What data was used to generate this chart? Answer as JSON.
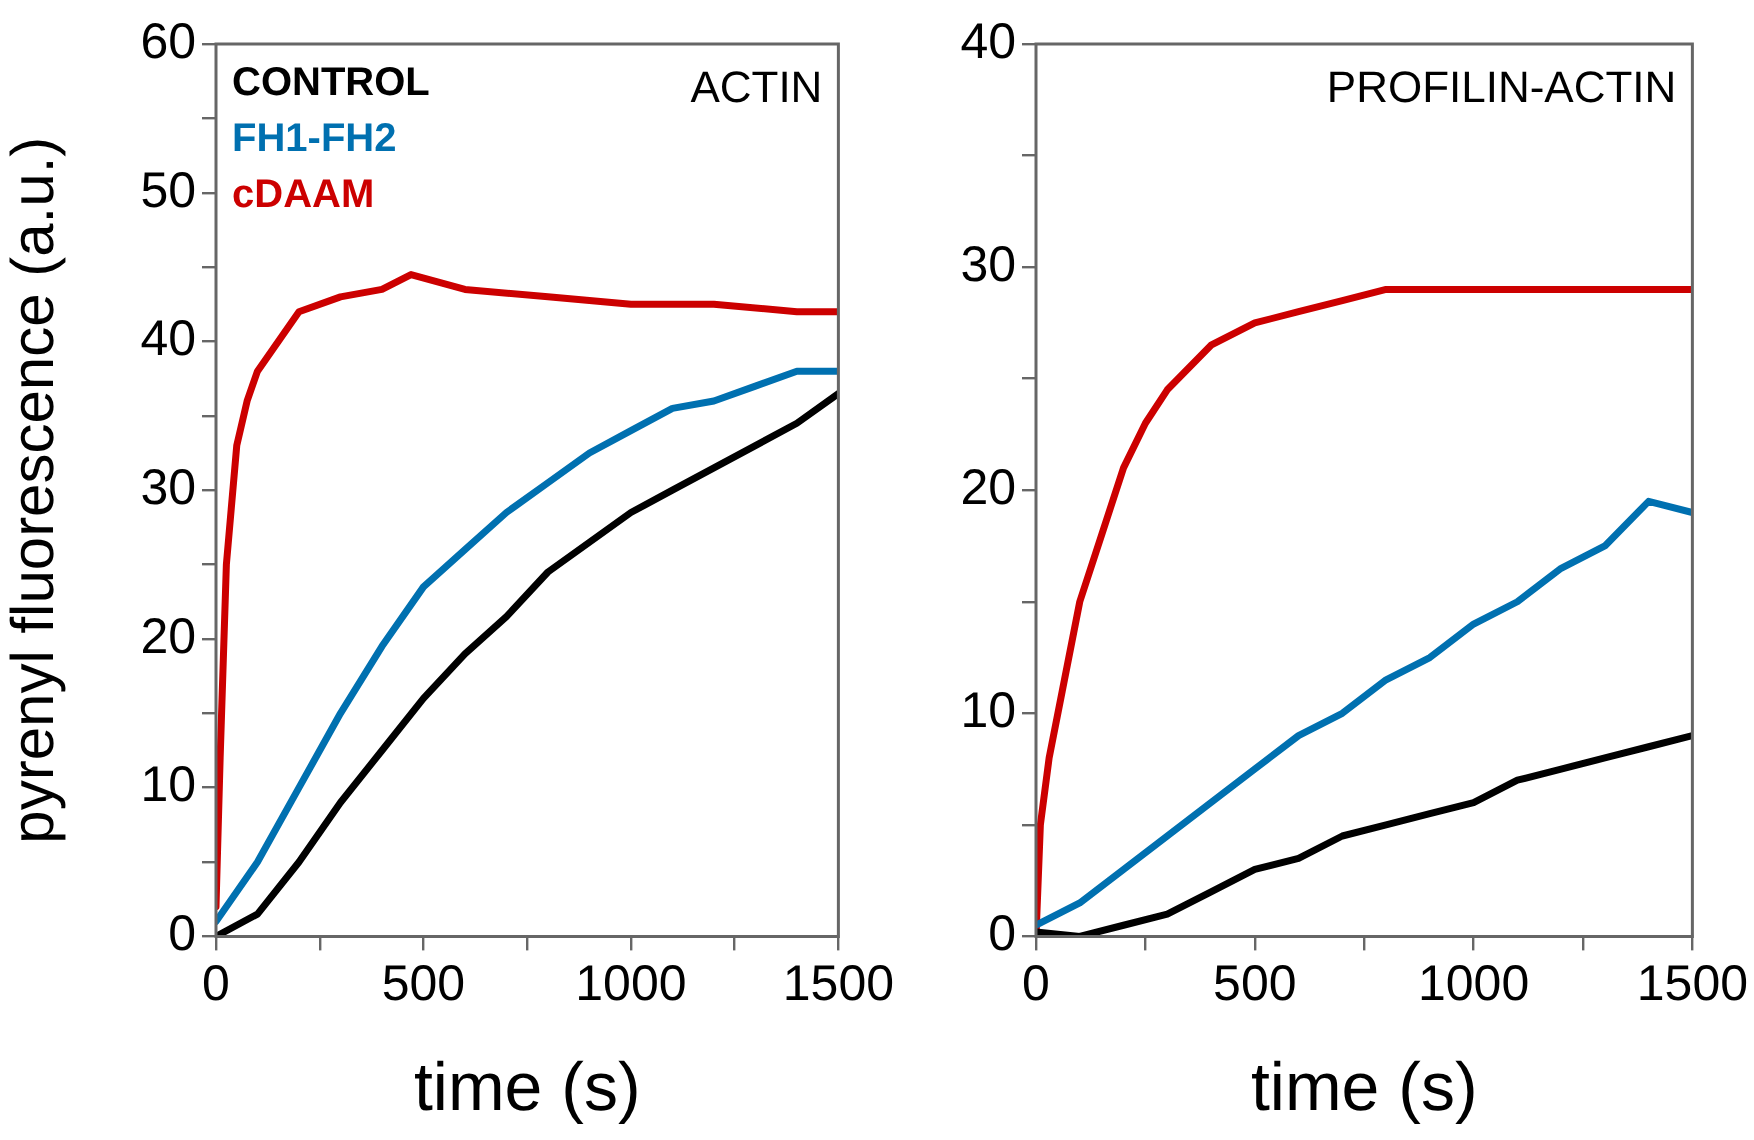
{
  "chart_data": [
    {
      "type": "line",
      "xlabel": "time (s)",
      "ylabel": "pyrenyl fluorescence (a.u.)",
      "annotations": [
        "ACTIN"
      ],
      "legend": "top left",
      "grid": false,
      "marker": "none",
      "line_style": "solid",
      "xlim": [
        0,
        1500
      ],
      "xticks": [
        0,
        {
          "value": 250,
          "label": null
        },
        500,
        {
          "value": 750,
          "label": null
        },
        1000,
        {
          "value": 1250,
          "label": null
        },
        1500
      ],
      "ylim": [
        0,
        60
      ],
      "yticks": [
        0,
        {
          "value": 5,
          "label": null
        },
        10,
        {
          "value": 15,
          "label": null
        },
        20,
        {
          "value": 25,
          "label": null
        },
        30,
        {
          "value": 35,
          "label": null
        },
        40,
        {
          "value": 45,
          "label": null
        },
        50,
        {
          "value": 55,
          "label": null
        },
        60
      ],
      "series": [
        {
          "name": "CONTROL",
          "color": "#000000",
          "x": [
            0,
            100,
            200,
            300,
            400,
            500,
            600,
            700,
            800,
            900,
            1000,
            1100,
            1200,
            1300,
            1400,
            1500
          ],
          "values": [
            0,
            1.5,
            5,
            9,
            12.5,
            16,
            19,
            21.5,
            24.5,
            26.5,
            28.5,
            30,
            31.5,
            33,
            34.5,
            36.5
          ]
        },
        {
          "name": "FH1-FH2",
          "color": "#0070b0",
          "x": [
            0,
            100,
            200,
            300,
            400,
            500,
            600,
            700,
            800,
            900,
            1000,
            1100,
            1200,
            1300,
            1400,
            1500
          ],
          "values": [
            1,
            5,
            10,
            15,
            19.5,
            23.5,
            26,
            28.5,
            30.5,
            32.5,
            34,
            35.5,
            36,
            37,
            38,
            38
          ]
        },
        {
          "name": "cDAAM",
          "color": "#cc0000",
          "x": [
            0,
            10,
            25,
            50,
            75,
            100,
            150,
            200,
            300,
            400,
            470,
            600,
            800,
            1000,
            1200,
            1400,
            1500
          ],
          "values": [
            2,
            12,
            25,
            33,
            36,
            38,
            40,
            42,
            43,
            43.5,
            44.5,
            43.5,
            43,
            42.5,
            42.5,
            42,
            42
          ]
        }
      ]
    },
    {
      "type": "line",
      "xlabel": "time (s)",
      "annotations": [
        "PROFILIN-ACTIN"
      ],
      "grid": false,
      "marker": "none",
      "line_style": "solid",
      "xlim": [
        0,
        1500
      ],
      "xticks": [
        0,
        {
          "value": 250,
          "label": null
        },
        500,
        {
          "value": 750,
          "label": null
        },
        1000,
        {
          "value": 1250,
          "label": null
        },
        1500
      ],
      "ylim": [
        0,
        40
      ],
      "yticks": [
        0,
        {
          "value": 5,
          "label": null
        },
        10,
        {
          "value": 15,
          "label": null
        },
        20,
        {
          "value": 25,
          "label": null
        },
        30,
        {
          "value": 35,
          "label": null
        },
        40
      ],
      "series": [
        {
          "color": "#000000",
          "x": [
            0,
            100,
            200,
            300,
            400,
            500,
            600,
            700,
            800,
            900,
            1000,
            1100,
            1200,
            1300,
            1400,
            1500
          ],
          "values": [
            0.2,
            0,
            0.5,
            1,
            2,
            3,
            3.5,
            4.5,
            5,
            5.5,
            6,
            7,
            7.5,
            8,
            8.5,
            9
          ]
        },
        {
          "color": "#0070b0",
          "x": [
            0,
            100,
            200,
            300,
            400,
            500,
            600,
            700,
            800,
            900,
            1000,
            1100,
            1200,
            1300,
            1400,
            1500
          ],
          "values": [
            0.5,
            1.5,
            3,
            4.5,
            6,
            7.5,
            9,
            10,
            11.5,
            12.5,
            14,
            15,
            16.5,
            17.5,
            19.5,
            19
          ]
        },
        {
          "color": "#cc0000",
          "x": [
            0,
            10,
            30,
            60,
            100,
            150,
            200,
            250,
            300,
            400,
            500,
            600,
            700,
            800,
            1000,
            1200,
            1400,
            1500
          ],
          "values": [
            0,
            5,
            8,
            11,
            15,
            18,
            21,
            23,
            24.5,
            26.5,
            27.5,
            28,
            28.5,
            29,
            29,
            29,
            29,
            29
          ]
        }
      ]
    }
  ]
}
